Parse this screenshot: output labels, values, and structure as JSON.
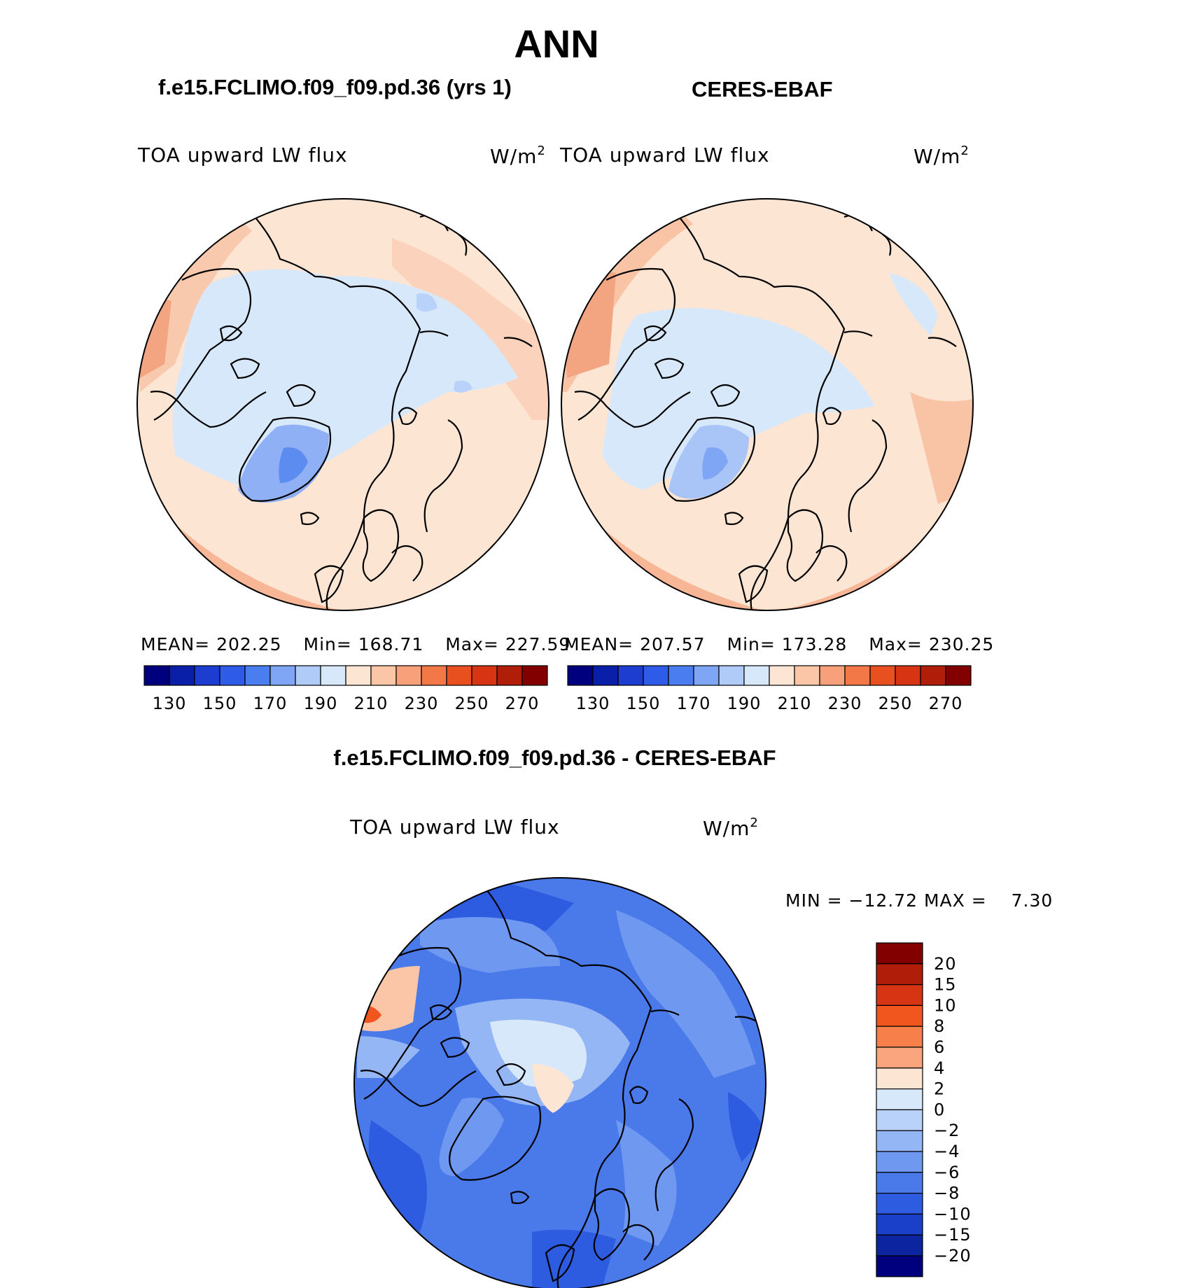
{
  "title": "ANN",
  "panels": [
    {
      "title": "f.e15.FCLIMO.f09_f09.pd.36 (yrs 1)",
      "variable": "TOA upward LW flux",
      "units": "W/m",
      "units_exp": "2",
      "stats": {
        "mean_label": "MEAN=",
        "mean": "202.25",
        "min_label": "Min=",
        "min": "168.71",
        "max_label": "Max=",
        "max": "227.59"
      }
    },
    {
      "title": "CERES-EBAF",
      "variable": "TOA upward LW flux",
      "units": "W/m",
      "units_exp": "2",
      "stats": {
        "mean_label": "MEAN=",
        "mean": "207.57",
        "min_label": "Min=",
        "min": "173.28",
        "max_label": "Max=",
        "max": "230.25"
      }
    }
  ],
  "diff_panel": {
    "title": "f.e15.FCLIMO.f09_f09.pd.36 - CERES-EBAF",
    "variable": "TOA upward LW flux",
    "units": "W/m",
    "units_exp": "2",
    "minmax": {
      "min_label": "MIN =",
      "min": "−12.72",
      "max_label": "MAX =",
      "max": "7.30"
    }
  },
  "colorbar_abs": {
    "tick_labels": [
      "130",
      "150",
      "170",
      "190",
      "210",
      "230",
      "250",
      "270"
    ],
    "colors": [
      "#00007f",
      "#0a1fa8",
      "#1c3dd0",
      "#2e5be8",
      "#4a7ef0",
      "#7ea6f4",
      "#b0cbf8",
      "#d8e8fb",
      "#fde5d4",
      "#fbc6a8",
      "#f7a07a",
      "#f27848",
      "#e9501f",
      "#d63412",
      "#b01d08",
      "#820000"
    ]
  },
  "colorbar_diff": {
    "tick_labels": [
      "20",
      "15",
      "10",
      "8",
      "6",
      "4",
      "2",
      "0",
      "−2",
      "−4",
      "−6",
      "−8",
      "−10",
      "−15",
      "−20"
    ],
    "colors": [
      "#820000",
      "#b01d08",
      "#d63412",
      "#f2561f",
      "#f7804a",
      "#faa57e",
      "#fde5d4",
      "#d8e8fb",
      "#b8d2f9",
      "#94b6f5",
      "#6f98f1",
      "#4a7aea",
      "#2e5ce0",
      "#1a3fc8",
      "#0d24a0",
      "#00007f"
    ]
  },
  "colors": {
    "ocean_light": "#fce3d2",
    "ocean_warm": "#f9c3a6",
    "arctic": "#d8e8fb",
    "greenland": "#a9c5f7",
    "diff_blue": "#5f8cee",
    "coast": "#000000"
  }
}
